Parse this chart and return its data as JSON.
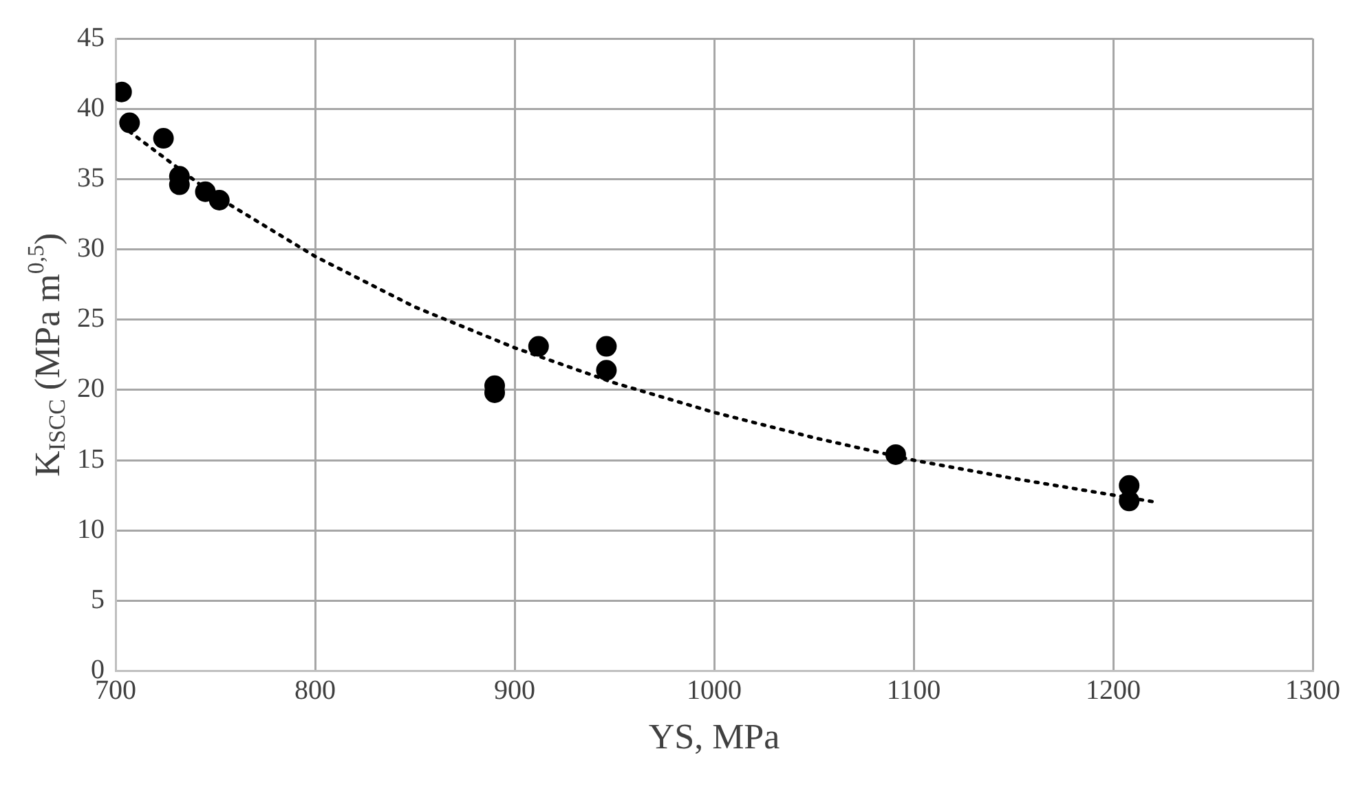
{
  "chart_data": {
    "type": "scatter",
    "xlabel": "YS, MPa",
    "ylabel": "K$_{ISCC}$ (MPa m$^{0,5}$)",
    "xlim": [
      700,
      1300
    ],
    "xticks": [
      700,
      800,
      900,
      1000,
      1100,
      1200,
      1300
    ],
    "ylim": [
      0,
      45
    ],
    "yticks": [
      0,
      5,
      10,
      15,
      20,
      25,
      30,
      35,
      40,
      45
    ],
    "grid": true,
    "marker": "circle",
    "series": [
      {
        "color": "#000000",
        "x": [
          703,
          707,
          724,
          732,
          732,
          745,
          752,
          890,
          890,
          912,
          946,
          946,
          1091,
          1208,
          1208
        ],
        "values": [
          41.2,
          39.0,
          37.9,
          35.2,
          34.6,
          34.1,
          33.5,
          20.3,
          19.8,
          23.1,
          23.1,
          21.4,
          15.4,
          13.2,
          12.1
        ]
      },
      {
        "type": "line",
        "color": "#000000",
        "line_style": "dotted",
        "marker": "none",
        "x": [
          703,
          750,
          800,
          850,
          900,
          950,
          1000,
          1050,
          1100,
          1150,
          1222
        ],
        "values": [
          38.8,
          33.8,
          29.5,
          25.9,
          23.0,
          20.5,
          18.4,
          16.6,
          15.0,
          13.7,
          12.0
        ]
      }
    ]
  }
}
